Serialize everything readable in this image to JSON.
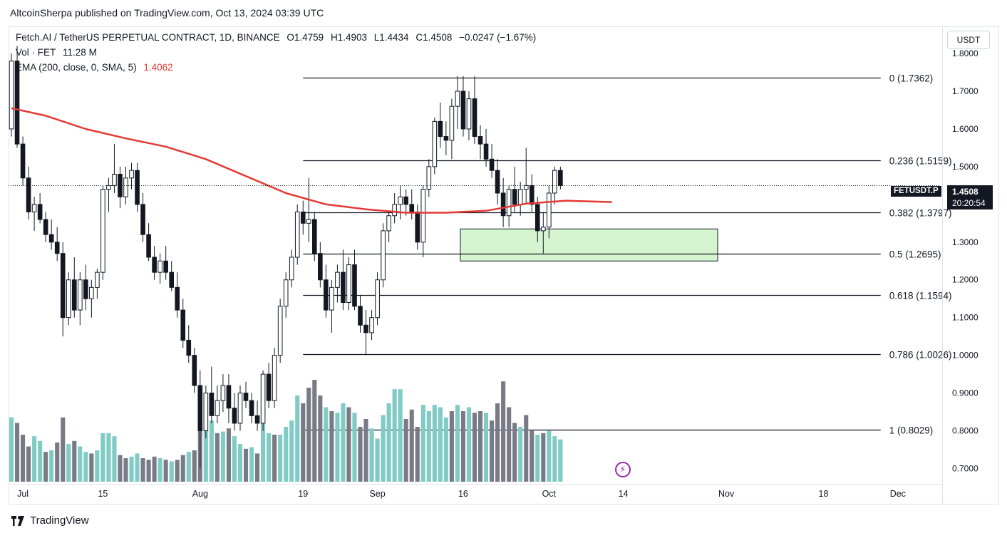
{
  "header": {
    "published_line": "AltcoinSherpa published on TradingView.com, Oct 13, 2024 03:39 UTC"
  },
  "legend": {
    "symbol": "Fetch.AI / TetherUS PERPETUAL CONTRACT, 1D, BINANCE",
    "open": "O1.4759",
    "high": "H1.4903",
    "low": "L1.4434",
    "close": "C1.4508",
    "change": "−0.0247 (−1.67%)",
    "volume_label": "Vol · FET",
    "volume_value": "11.28 M",
    "ema_label": "EMA (200, close, 0, SMA, 5)",
    "ema_value": "1.4062"
  },
  "axis": {
    "unit": "USDT"
  },
  "ticker_tag": "FETUSDT.P",
  "price_tag": {
    "price": "1.4508",
    "countdown": "20:20:54"
  },
  "footer": {
    "brand": "TradingView"
  },
  "colors": {
    "up_volume": "#80cbc4",
    "down_volume": "#787b86",
    "candle": "#131722",
    "ema": "#e53935",
    "zone_fill": "#d5f5d0",
    "zone_border": "#131722"
  },
  "chart_data": {
    "type": "candlestick",
    "title": "Fetch.AI / TetherUS PERPETUAL CONTRACT, 1D, BINANCE",
    "y_ticks": [
      0.7,
      0.8,
      0.9,
      1.0,
      1.1,
      1.2,
      1.3,
      1.4,
      1.5,
      1.6,
      1.7,
      1.8
    ],
    "y_tick_labels": [
      "0.7000",
      "0.8000",
      "0.9000",
      "1.0000",
      "1.1000",
      "1.2000",
      "1.3000",
      "1.4000",
      "1.5000",
      "1.6000",
      "1.7000",
      "1.8000"
    ],
    "ylim": [
      0.665,
      1.87
    ],
    "x_start_date": "2024-06-29",
    "x_end_date": "2024-12-09",
    "x_tick_labels": [
      {
        "date": "2024-07-01",
        "label": "Jul"
      },
      {
        "date": "2024-07-15",
        "label": "15"
      },
      {
        "date": "2024-08-01",
        "label": "Aug"
      },
      {
        "date": "2024-08-19",
        "label": "19"
      },
      {
        "date": "2024-09-01",
        "label": "Sep"
      },
      {
        "date": "2024-09-16",
        "label": "16"
      },
      {
        "date": "2024-10-01",
        "label": "Oct"
      },
      {
        "date": "2024-10-14",
        "label": "14"
      },
      {
        "date": "2024-11-01",
        "label": "Nov"
      },
      {
        "date": "2024-11-18",
        "label": "18"
      },
      {
        "date": "2024-12-01",
        "label": "Dec"
      }
    ],
    "first_candle_date": "2024-06-29",
    "candles": [
      [
        1.6,
        1.8,
        1.58,
        1.78
      ],
      [
        1.78,
        1.82,
        1.55,
        1.56
      ],
      [
        1.56,
        1.58,
        1.45,
        1.47
      ],
      [
        1.47,
        1.5,
        1.36,
        1.38
      ],
      [
        1.38,
        1.42,
        1.33,
        1.4
      ],
      [
        1.4,
        1.43,
        1.35,
        1.36
      ],
      [
        1.36,
        1.38,
        1.3,
        1.32
      ],
      [
        1.32,
        1.36,
        1.28,
        1.3
      ],
      [
        1.3,
        1.34,
        1.25,
        1.27
      ],
      [
        1.27,
        1.3,
        1.05,
        1.1
      ],
      [
        1.1,
        1.22,
        1.08,
        1.2
      ],
      [
        1.2,
        1.26,
        1.1,
        1.12
      ],
      [
        1.12,
        1.22,
        1.08,
        1.2
      ],
      [
        1.2,
        1.24,
        1.12,
        1.15
      ],
      [
        1.15,
        1.2,
        1.1,
        1.18
      ],
      [
        1.18,
        1.23,
        1.15,
        1.22
      ],
      [
        1.22,
        1.45,
        1.2,
        1.44
      ],
      [
        1.44,
        1.47,
        1.38,
        1.45
      ],
      [
        1.45,
        1.56,
        1.43,
        1.48
      ],
      [
        1.48,
        1.5,
        1.39,
        1.42
      ],
      [
        1.42,
        1.5,
        1.4,
        1.47
      ],
      [
        1.47,
        1.51,
        1.44,
        1.49
      ],
      [
        1.49,
        1.51,
        1.38,
        1.4
      ],
      [
        1.4,
        1.43,
        1.3,
        1.32
      ],
      [
        1.32,
        1.35,
        1.25,
        1.26
      ],
      [
        1.26,
        1.29,
        1.2,
        1.22
      ],
      [
        1.22,
        1.27,
        1.19,
        1.25
      ],
      [
        1.25,
        1.29,
        1.2,
        1.22
      ],
      [
        1.22,
        1.25,
        1.17,
        1.18
      ],
      [
        1.18,
        1.22,
        1.1,
        1.12
      ],
      [
        1.12,
        1.15,
        1.02,
        1.04
      ],
      [
        1.04,
        1.08,
        0.98,
        1.0
      ],
      [
        1.0,
        1.02,
        0.9,
        0.92
      ],
      [
        0.92,
        0.96,
        0.7,
        0.8
      ],
      [
        0.8,
        0.92,
        0.78,
        0.9
      ],
      [
        0.9,
        0.97,
        0.82,
        0.84
      ],
      [
        0.84,
        0.92,
        0.82,
        0.88
      ],
      [
        0.88,
        0.95,
        0.85,
        0.92
      ],
      [
        0.92,
        0.95,
        0.82,
        0.86
      ],
      [
        0.86,
        0.9,
        0.8,
        0.82
      ],
      [
        0.82,
        0.92,
        0.8,
        0.9
      ],
      [
        0.9,
        0.93,
        0.86,
        0.88
      ],
      [
        0.88,
        0.9,
        0.82,
        0.84
      ],
      [
        0.84,
        0.88,
        0.8,
        0.82
      ],
      [
        0.82,
        0.96,
        0.8,
        0.95
      ],
      [
        0.95,
        0.98,
        0.86,
        0.88
      ],
      [
        0.88,
        1.02,
        0.86,
        1.0
      ],
      [
        1.0,
        1.15,
        0.98,
        1.13
      ],
      [
        1.13,
        1.22,
        1.1,
        1.2
      ],
      [
        1.2,
        1.28,
        1.18,
        1.26
      ],
      [
        1.26,
        1.4,
        1.24,
        1.38
      ],
      [
        1.38,
        1.41,
        1.32,
        1.35
      ],
      [
        1.35,
        1.47,
        1.3,
        1.36
      ],
      [
        1.36,
        1.38,
        1.25,
        1.27
      ],
      [
        1.27,
        1.3,
        1.18,
        1.2
      ],
      [
        1.2,
        1.24,
        1.1,
        1.12
      ],
      [
        1.12,
        1.2,
        1.06,
        1.18
      ],
      [
        1.18,
        1.24,
        1.14,
        1.22
      ],
      [
        1.22,
        1.28,
        1.12,
        1.14
      ],
      [
        1.14,
        1.26,
        1.12,
        1.24
      ],
      [
        1.24,
        1.28,
        1.12,
        1.13
      ],
      [
        1.13,
        1.16,
        1.06,
        1.08
      ],
      [
        1.08,
        1.12,
        1.0,
        1.06
      ],
      [
        1.06,
        1.12,
        1.04,
        1.1
      ],
      [
        1.1,
        1.22,
        1.08,
        1.2
      ],
      [
        1.2,
        1.35,
        1.18,
        1.33
      ],
      [
        1.33,
        1.38,
        1.3,
        1.37
      ],
      [
        1.37,
        1.43,
        1.35,
        1.4
      ],
      [
        1.4,
        1.45,
        1.36,
        1.42
      ],
      [
        1.42,
        1.44,
        1.37,
        1.4
      ],
      [
        1.4,
        1.44,
        1.36,
        1.38
      ],
      [
        1.38,
        1.4,
        1.28,
        1.3
      ],
      [
        1.3,
        1.45,
        1.26,
        1.44
      ],
      [
        1.44,
        1.52,
        1.42,
        1.5
      ],
      [
        1.5,
        1.63,
        1.48,
        1.62
      ],
      [
        1.62,
        1.67,
        1.55,
        1.58
      ],
      [
        1.58,
        1.62,
        1.53,
        1.57
      ],
      [
        1.57,
        1.68,
        1.52,
        1.66
      ],
      [
        1.66,
        1.74,
        1.6,
        1.7
      ],
      [
        1.7,
        1.74,
        1.58,
        1.6
      ],
      [
        1.6,
        1.7,
        1.57,
        1.68
      ],
      [
        1.68,
        1.74,
        1.56,
        1.58
      ],
      [
        1.58,
        1.61,
        1.52,
        1.56
      ],
      [
        1.56,
        1.6,
        1.5,
        1.52
      ],
      [
        1.52,
        1.56,
        1.47,
        1.49
      ],
      [
        1.49,
        1.52,
        1.4,
        1.43
      ],
      [
        1.43,
        1.47,
        1.34,
        1.37
      ],
      [
        1.37,
        1.45,
        1.34,
        1.44
      ],
      [
        1.44,
        1.5,
        1.38,
        1.4
      ],
      [
        1.4,
        1.46,
        1.37,
        1.44
      ],
      [
        1.44,
        1.55,
        1.4,
        1.45
      ],
      [
        1.45,
        1.48,
        1.38,
        1.4
      ],
      [
        1.4,
        1.42,
        1.3,
        1.33
      ],
      [
        1.33,
        1.38,
        1.27,
        1.34
      ],
      [
        1.34,
        1.45,
        1.31,
        1.43
      ],
      [
        1.43,
        1.5,
        1.4,
        1.49
      ],
      [
        1.49,
        1.5,
        1.44,
        1.45
      ]
    ],
    "volumes": [
      [
        82,
        "up"
      ],
      [
        75,
        "down"
      ],
      [
        60,
        "down"
      ],
      [
        45,
        "down"
      ],
      [
        58,
        "up"
      ],
      [
        52,
        "up"
      ],
      [
        38,
        "down"
      ],
      [
        40,
        "up"
      ],
      [
        50,
        "down"
      ],
      [
        82,
        "down"
      ],
      [
        48,
        "up"
      ],
      [
        52,
        "down"
      ],
      [
        45,
        "up"
      ],
      [
        38,
        "up"
      ],
      [
        36,
        "down"
      ],
      [
        40,
        "up"
      ],
      [
        62,
        "up"
      ],
      [
        62,
        "up"
      ],
      [
        58,
        "up"
      ],
      [
        34,
        "down"
      ],
      [
        30,
        "down"
      ],
      [
        32,
        "up"
      ],
      [
        36,
        "up"
      ],
      [
        30,
        "down"
      ],
      [
        28,
        "down"
      ],
      [
        32,
        "down"
      ],
      [
        30,
        "up"
      ],
      [
        28,
        "down"
      ],
      [
        26,
        "up"
      ],
      [
        28,
        "down"
      ],
      [
        34,
        "down"
      ],
      [
        38,
        "up"
      ],
      [
        40,
        "down"
      ],
      [
        80,
        "down"
      ],
      [
        70,
        "up"
      ],
      [
        78,
        "up"
      ],
      [
        62,
        "down"
      ],
      [
        64,
        "up"
      ],
      [
        68,
        "down"
      ],
      [
        58,
        "up"
      ],
      [
        48,
        "up"
      ],
      [
        42,
        "down"
      ],
      [
        44,
        "up"
      ],
      [
        36,
        "down"
      ],
      [
        74,
        "up"
      ],
      [
        62,
        "up"
      ],
      [
        60,
        "down"
      ],
      [
        60,
        "up"
      ],
      [
        70,
        "up"
      ],
      [
        78,
        "up"
      ],
      [
        110,
        "up"
      ],
      [
        100,
        "down"
      ],
      [
        120,
        "down"
      ],
      [
        130,
        "down"
      ],
      [
        110,
        "down"
      ],
      [
        95,
        "up"
      ],
      [
        90,
        "down"
      ],
      [
        88,
        "up"
      ],
      [
        100,
        "up"
      ],
      [
        95,
        "down"
      ],
      [
        88,
        "up"
      ],
      [
        70,
        "down"
      ],
      [
        80,
        "down"
      ],
      [
        68,
        "up"
      ],
      [
        55,
        "up"
      ],
      [
        85,
        "up"
      ],
      [
        100,
        "up"
      ],
      [
        118,
        "up"
      ],
      [
        118,
        "up"
      ],
      [
        80,
        "down"
      ],
      [
        92,
        "down"
      ],
      [
        70,
        "down"
      ],
      [
        98,
        "up"
      ],
      [
        90,
        "up"
      ],
      [
        98,
        "up"
      ],
      [
        95,
        "up"
      ],
      [
        82,
        "up"
      ],
      [
        90,
        "down"
      ],
      [
        98,
        "up"
      ],
      [
        90,
        "down"
      ],
      [
        95,
        "up"
      ],
      [
        88,
        "down"
      ],
      [
        90,
        "down"
      ],
      [
        88,
        "up"
      ],
      [
        78,
        "down"
      ],
      [
        100,
        "down"
      ],
      [
        128,
        "down"
      ],
      [
        95,
        "down"
      ],
      [
        75,
        "down"
      ],
      [
        70,
        "up"
      ],
      [
        85,
        "down"
      ],
      [
        65,
        "down"
      ],
      [
        60,
        "up"
      ],
      [
        62,
        "down"
      ],
      [
        65,
        "up"
      ],
      [
        58,
        "up"
      ],
      [
        54,
        "up"
      ]
    ],
    "ema_points": [
      [
        "2024-06-29",
        1.655
      ],
      [
        "2024-07-05",
        1.635
      ],
      [
        "2024-07-12",
        1.6
      ],
      [
        "2024-07-19",
        1.575
      ],
      [
        "2024-07-26",
        1.553
      ],
      [
        "2024-08-02",
        1.52
      ],
      [
        "2024-08-09",
        1.475
      ],
      [
        "2024-08-16",
        1.43
      ],
      [
        "2024-08-23",
        1.4
      ],
      [
        "2024-08-30",
        1.387
      ],
      [
        "2024-09-06",
        1.378
      ],
      [
        "2024-09-13",
        1.378
      ],
      [
        "2024-09-20",
        1.383
      ],
      [
        "2024-09-27",
        1.402
      ],
      [
        "2024-10-04",
        1.41
      ],
      [
        "2024-10-12",
        1.4062
      ]
    ],
    "fib_levels": [
      {
        "label": "0 (1.7362)",
        "value": 1.7362
      },
      {
        "label": "0.236 (1.5159)",
        "value": 1.5159
      },
      {
        "label": "0.382 (1.3797)",
        "value": 1.3797
      },
      {
        "label": "0.5 (1.2695)",
        "value": 1.2695
      },
      {
        "label": "0.618 (1.1594)",
        "value": 1.1594
      },
      {
        "label": "0.786 (1.0026)",
        "value": 1.0026
      },
      {
        "label": "1 (0.8029)",
        "value": 0.8029
      }
    ],
    "fib_start_date": "2024-08-19",
    "fib_end_date": "2024-11-28",
    "zone": {
      "start_date": "2024-09-16",
      "end_date": "2024-10-31",
      "top": 1.335,
      "bottom": 1.25
    },
    "last_price": 1.4508
  }
}
